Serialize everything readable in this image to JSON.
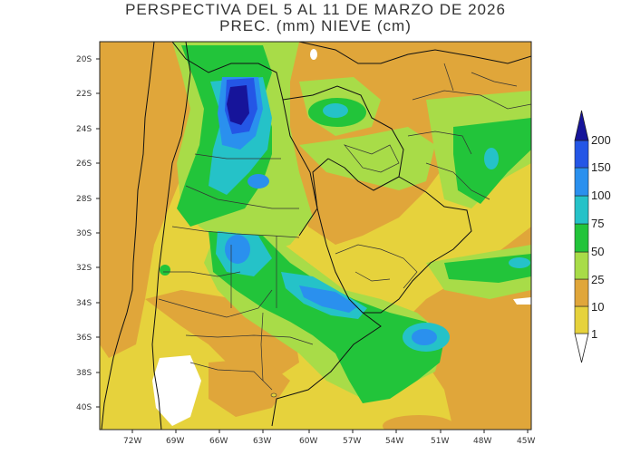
{
  "title": {
    "line1": "PERSPECTIVA DEL 5 AL 11 DE MARZO DE 2026",
    "line2": "PREC. (mm) NIEVE (cm)"
  },
  "axes": {
    "lat_labels": [
      "20S",
      "22S",
      "24S",
      "26S",
      "28S",
      "30S",
      "32S",
      "34S",
      "36S",
      "38S",
      "40S"
    ],
    "lon_labels": [
      "72W",
      "69W",
      "66W",
      "63W",
      "60W",
      "57W",
      "54W",
      "51W",
      "48W",
      "45W"
    ]
  },
  "legend": {
    "levels": [
      "1",
      "10",
      "25",
      "50",
      "75",
      "100",
      "150",
      "200"
    ],
    "colors": {
      "c1": "#e6d23c",
      "c10": "#e0a63a",
      "c25": "#a8dc48",
      "c50": "#22c43a",
      "c75": "#25c2c8",
      "c100": "#2a90ee",
      "c150": "#2456e6",
      "c200": "#16149a"
    }
  },
  "colors": {
    "country_border": "#111111",
    "province_border": "#333333"
  }
}
